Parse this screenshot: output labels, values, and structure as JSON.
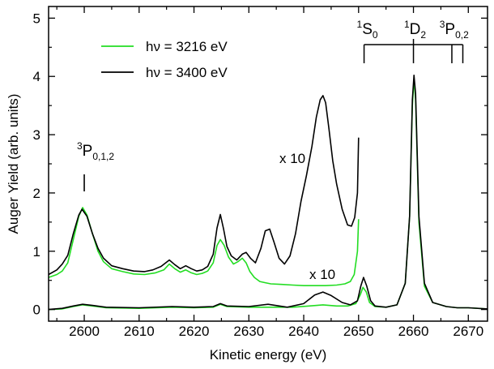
{
  "chart_data": {
    "type": "line",
    "xlabel": "Kinetic energy (eV)",
    "ylabel": "Auger Yield (arb. units)",
    "xlim": [
      2593.5,
      2673.5
    ],
    "ylim": [
      -0.2,
      5.2
    ],
    "x_ticks": [
      2600,
      2610,
      2620,
      2630,
      2640,
      2650,
      2660,
      2670
    ],
    "x_tick_labels": [
      "2600",
      "2610",
      "2620",
      "2630",
      "2640",
      "2650",
      "2660",
      "2670"
    ],
    "y_ticks": [
      0,
      1,
      2,
      3,
      4,
      5
    ],
    "y_tick_labels": [
      "0",
      "1",
      "2",
      "3",
      "4",
      "5"
    ],
    "legend_position": "top-left",
    "series": [
      {
        "name": "hν = 3216 eV",
        "color": "#22dd22",
        "segments": [
          {
            "role": "x10",
            "x": [
              2593.5,
              2595,
              2596,
              2597,
              2598,
              2599,
              2599.7,
              2600.5,
              2601.5,
              2602.5,
              2603.5,
              2605,
              2607,
              2609,
              2611,
              2613,
              2614.5,
              2615.5,
              2616.5,
              2617.5,
              2618.5,
              2619.5,
              2620.5,
              2621.5,
              2622.5,
              2623.5,
              2624.2,
              2624.8,
              2625.5,
              2626.3,
              2627.2,
              2628,
              2628.8,
              2629.5,
              2630.2,
              2631,
              2632,
              2633,
              2634,
              2636,
              2638,
              2640,
              2642,
              2644,
              2646,
              2647.5,
              2648.5,
              2649.2,
              2649.8,
              2650
            ],
            "y": [
              0.55,
              0.6,
              0.66,
              0.8,
              1.2,
              1.6,
              1.75,
              1.62,
              1.3,
              1.0,
              0.82,
              0.7,
              0.65,
              0.61,
              0.6,
              0.63,
              0.68,
              0.78,
              0.7,
              0.64,
              0.68,
              0.63,
              0.6,
              0.62,
              0.66,
              0.8,
              1.1,
              1.2,
              1.1,
              0.9,
              0.78,
              0.82,
              0.88,
              0.8,
              0.65,
              0.55,
              0.48,
              0.46,
              0.44,
              0.43,
              0.42,
              0.41,
              0.41,
              0.41,
              0.42,
              0.44,
              0.48,
              0.6,
              1.0,
              1.55
            ]
          },
          {
            "role": "x1",
            "x": [
              2593.5,
              2596,
              2598,
              2599.7,
              2601.5,
              2604,
              2610,
              2616,
              2620,
              2623.5,
              2624.8,
              2626,
              2630,
              2634,
              2638,
              2641,
              2643.5,
              2646,
              2648,
              2649.5,
              2650.3,
              2650.8,
              2651.4,
              2652,
              2653,
              2655,
              2657,
              2658.5,
              2659.3,
              2659.8,
              2660.1,
              2660.4,
              2661,
              2662,
              2663.5,
              2666,
              2668,
              2670,
              2673.5
            ],
            "y": [
              0.0,
              0.01,
              0.05,
              0.08,
              0.06,
              0.03,
              0.02,
              0.04,
              0.03,
              0.04,
              0.09,
              0.05,
              0.04,
              0.04,
              0.04,
              0.06,
              0.08,
              0.06,
              0.06,
              0.1,
              0.25,
              0.38,
              0.3,
              0.12,
              0.05,
              0.04,
              0.08,
              0.45,
              1.6,
              3.5,
              3.95,
              3.6,
              1.5,
              0.4,
              0.12,
              0.05,
              0.03,
              0.03,
              0.01
            ]
          }
        ]
      },
      {
        "name": "hν = 3400 eV",
        "color": "#000000",
        "segments": [
          {
            "role": "x10",
            "x": [
              2593.5,
              2595,
              2596,
              2597,
              2598,
              2599,
              2599.6,
              2600.5,
              2601.5,
              2602.5,
              2603.5,
              2605,
              2607,
              2609,
              2611,
              2612.5,
              2614,
              2615.5,
              2616.5,
              2617.5,
              2618.5,
              2619.5,
              2620.5,
              2621.5,
              2622.5,
              2623.5,
              2624.2,
              2624.8,
              2625.4,
              2626,
              2626.8,
              2627.8,
              2628.8,
              2629.5,
              2630.3,
              2631.2,
              2632.2,
              2633,
              2633.8,
              2634.6,
              2635.5,
              2636.5,
              2637.5,
              2638.5,
              2639.5,
              2640.5,
              2641.5,
              2642.3,
              2643,
              2643.5,
              2644,
              2644.6,
              2645.3,
              2646,
              2647,
              2648,
              2648.7,
              2649.3,
              2649.8,
              2650
            ],
            "y": [
              0.6,
              0.68,
              0.78,
              0.93,
              1.3,
              1.62,
              1.72,
              1.6,
              1.3,
              1.05,
              0.88,
              0.75,
              0.7,
              0.66,
              0.65,
              0.68,
              0.74,
              0.85,
              0.77,
              0.7,
              0.75,
              0.7,
              0.66,
              0.68,
              0.74,
              0.95,
              1.4,
              1.63,
              1.38,
              1.08,
              0.92,
              0.85,
              0.95,
              0.98,
              0.88,
              0.8,
              1.05,
              1.35,
              1.38,
              1.15,
              0.88,
              0.78,
              0.92,
              1.3,
              1.85,
              2.3,
              2.8,
              3.3,
              3.6,
              3.67,
              3.55,
              3.1,
              2.55,
              2.15,
              1.72,
              1.45,
              1.43,
              1.58,
              2.0,
              2.95
            ]
          },
          {
            "role": "x1",
            "x": [
              2593.5,
              2596,
              2598,
              2599.7,
              2601.5,
              2604,
              2610,
              2616,
              2620,
              2623.5,
              2624.8,
              2626,
              2630,
              2633.5,
              2637,
              2640,
              2642,
              2643.5,
              2645,
              2647,
              2648.5,
              2649.8,
              2650.4,
              2650.9,
              2651.5,
              2652.2,
              2653,
              2655,
              2657,
              2658.5,
              2659.3,
              2659.8,
              2660.1,
              2660.4,
              2661,
              2662,
              2663.5,
              2666,
              2668,
              2670,
              2673.5
            ],
            "y": [
              0.0,
              0.02,
              0.06,
              0.09,
              0.07,
              0.04,
              0.03,
              0.05,
              0.04,
              0.05,
              0.1,
              0.06,
              0.05,
              0.09,
              0.04,
              0.1,
              0.25,
              0.3,
              0.24,
              0.12,
              0.08,
              0.15,
              0.4,
              0.55,
              0.4,
              0.15,
              0.06,
              0.04,
              0.08,
              0.45,
              1.6,
              3.6,
              4.02,
              3.7,
              1.6,
              0.45,
              0.12,
              0.05,
              0.03,
              0.03,
              0.01
            ]
          }
        ]
      }
    ],
    "annotations": {
      "x10_black": "x 10",
      "x10_green": "x 10",
      "peak_label_sup": "3",
      "peak_label_main": "P",
      "peak_label_sub": "0,1,2",
      "ticks_1S0": {
        "sup": "1",
        "main": "S",
        "sub": "0"
      },
      "ticks_1D2": {
        "sup": "1",
        "main": "D",
        "sub": "2"
      },
      "ticks_3P02": {
        "sup": "3",
        "main": "P",
        "sub": "0,2"
      }
    },
    "markers": {
      "peak_3P012_x": 2600,
      "comb_1S0_x": 2651,
      "comb_1D2_x": 2660,
      "comb_3P0_x": 2667,
      "comb_3P2_x": 2669
    }
  }
}
